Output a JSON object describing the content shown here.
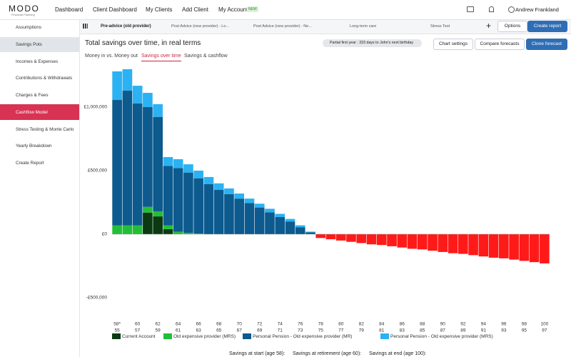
{
  "nav": {
    "logo": "MODO",
    "logo_sub": "Financial Planning",
    "items": [
      "Dashboard",
      "Client Dashboard",
      "My Clients",
      "Add Client",
      "My Account"
    ],
    "badge": "NEW",
    "user": "Andrew Frankland"
  },
  "sidebar": [
    "Assumptions",
    "Savings Pots",
    "Incomes & Expenses",
    "Contributions & Withdrawals",
    "Charges & Fees",
    "Cashflow Model",
    "Stress Testing & Monte Carlo",
    "Yearly Breakdown",
    "Create Report"
  ],
  "scenario_tabs": [
    "Pre-advice (old provider)",
    "Post Advice (new provider) - Lo...",
    "Post Advice (new provider) - Ne...",
    "Long-term care",
    "Stress Test"
  ],
  "add_tab": "+",
  "options": "Options",
  "create_report": "Create report",
  "title": "Total savings over time, in real terms",
  "chip": "Partial first year : 333 days to John's next birthday",
  "buttons": [
    "Chart settings",
    "Compare forecasts",
    "Clone forecast"
  ],
  "subtabs": [
    "Money in vs. Money out",
    "Savings over time",
    "Savings & cashflow"
  ],
  "chart_data": {
    "type": "stacked_bar",
    "categories": [
      "58*",
      null,
      "60",
      null,
      "62",
      null,
      "64",
      null,
      "66",
      null,
      "68",
      null,
      "70",
      null,
      "72",
      null,
      "74",
      null,
      "76",
      null,
      "78",
      null,
      "80",
      null,
      "82",
      null,
      "84",
      null,
      "86",
      null,
      "88",
      null,
      "90",
      null,
      "92",
      null,
      "94",
      null,
      "96",
      null,
      "98",
      null,
      "100"
    ],
    "categories2": [
      "55",
      null,
      "57",
      null,
      "59",
      null,
      "61",
      null,
      "63",
      null,
      "65",
      null,
      "67",
      null,
      "69",
      null,
      "71",
      null,
      "73",
      null,
      "75",
      null,
      "77",
      null,
      "79",
      null,
      "81",
      null,
      "83",
      null,
      "85",
      null,
      "87",
      null,
      "89",
      null,
      "91",
      null,
      "93",
      null,
      "95",
      null,
      "97"
    ],
    "series": [
      {
        "name": "Current Account",
        "color": "#0b3a12",
        "values": [
          0,
          0,
          0,
          170000,
          140000,
          40000,
          0,
          0,
          0,
          0,
          0,
          0,
          0,
          0,
          0,
          0,
          0,
          0,
          0,
          0,
          0,
          0,
          0,
          0,
          0,
          0,
          0,
          0,
          0,
          0,
          0,
          0,
          0,
          0,
          0,
          0,
          0,
          0,
          0,
          0,
          0,
          0,
          0
        ]
      },
      {
        "name": "Old expensive provider (MRS)",
        "color": "#22bf36",
        "values": [
          70000,
          70000,
          70000,
          45000,
          40000,
          30000,
          20000,
          10000,
          5000,
          0,
          0,
          0,
          0,
          0,
          0,
          0,
          0,
          0,
          0,
          0,
          0,
          0,
          0,
          0,
          0,
          0,
          0,
          0,
          0,
          0,
          0,
          0,
          0,
          0,
          0,
          0,
          0,
          0,
          0,
          0,
          0,
          0,
          0
        ]
      },
      {
        "name": "Personal Pension - Old expensive provider (MR)",
        "color": "#0c5a8e",
        "values": [
          986000,
          1059000,
          958000,
          785000,
          743000,
          467000,
          500000,
          475000,
          435000,
          395000,
          350000,
          315000,
          280000,
          245000,
          210000,
          172000,
          135000,
          100000,
          55000,
          15000,
          0,
          0,
          0,
          0,
          0,
          0,
          0,
          0,
          0,
          0,
          0,
          0,
          0,
          0,
          0,
          0,
          0,
          0,
          0,
          0,
          0,
          0,
          0
        ]
      },
      {
        "name": "Personal Pension - Old expensive provider (MRS)",
        "color": "#2bb2f2",
        "values": [
          225000,
          169000,
          140000,
          112000,
          100000,
          70000,
          70000,
          65000,
          60000,
          55000,
          50000,
          45000,
          40000,
          35000,
          30000,
          28000,
          25000,
          20000,
          15000,
          5000,
          0,
          0,
          0,
          0,
          0,
          0,
          0,
          0,
          0,
          0,
          0,
          0,
          0,
          0,
          0,
          0,
          0,
          0,
          0,
          0,
          0,
          0,
          0
        ]
      },
      {
        "color": "#ff1a1a",
        "values": [
          0,
          0,
          0,
          0,
          0,
          0,
          0,
          0,
          0,
          0,
          0,
          0,
          0,
          0,
          0,
          0,
          0,
          0,
          0,
          0,
          -30000,
          -40000,
          -50000,
          -60000,
          -70000,
          -80000,
          -85000,
          -95000,
          -105000,
          -115000,
          -120000,
          -130000,
          -140000,
          -150000,
          -155000,
          -165000,
          -175000,
          -185000,
          -190000,
          -200000,
          -210000,
          -220000,
          -230000
        ]
      }
    ],
    "ylim": [
      -600000,
      1350000
    ],
    "yticks": [
      {
        "value": -500000,
        "label": "-£500,000"
      },
      {
        "value": 0,
        "label": "£0"
      },
      {
        "value": 500000,
        "label": "£500,000"
      },
      {
        "value": 1000000,
        "label": "£1,000,000"
      }
    ],
    "grid": false
  },
  "footer": [
    "Savings at start (age 58):",
    "Savings at retirement (age 60):",
    "Savings at end (age 100):"
  ]
}
